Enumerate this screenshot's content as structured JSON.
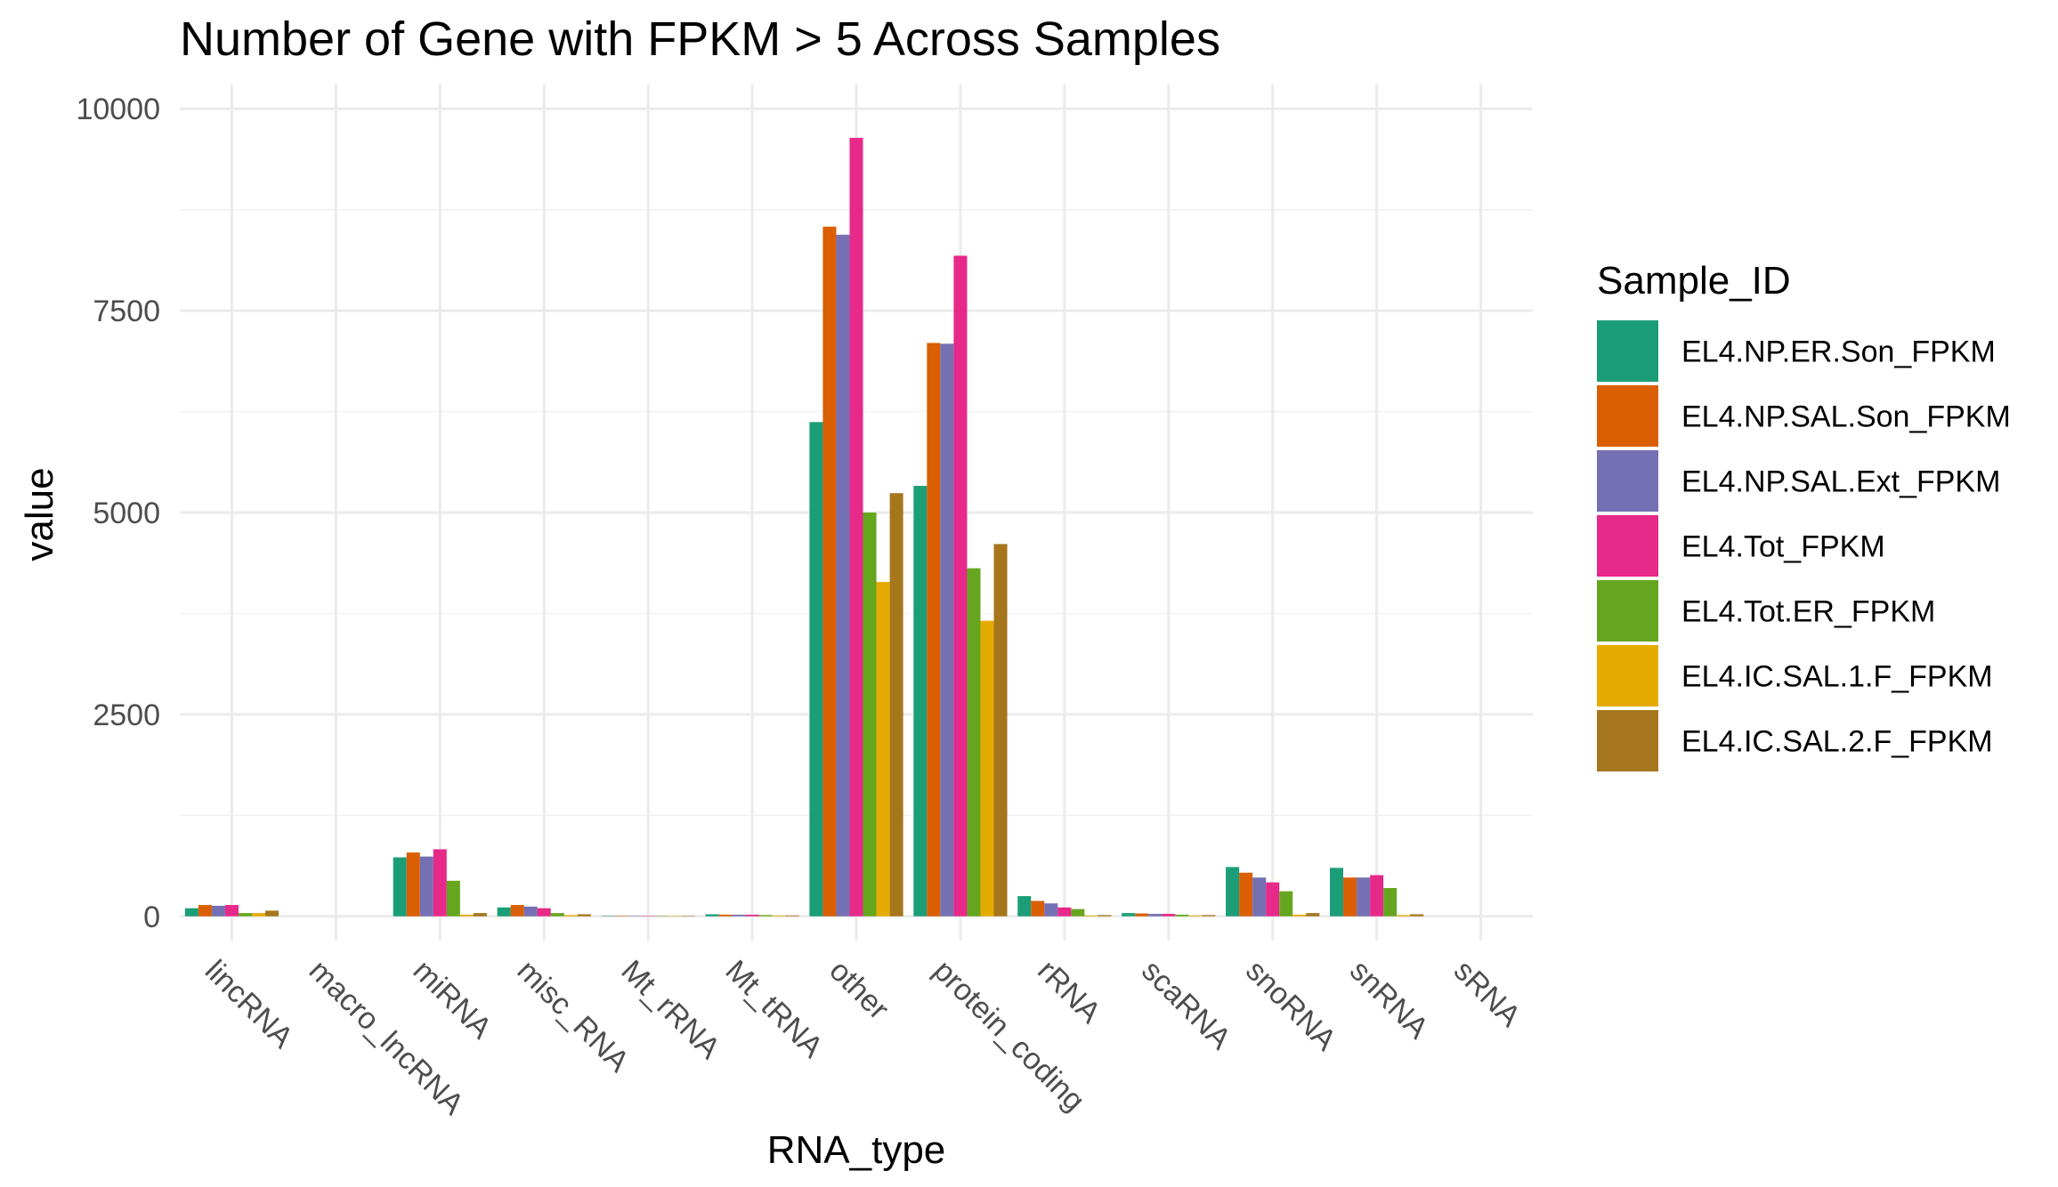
{
  "chart_data": {
    "type": "bar",
    "title": "Number of Gene with FPKM > 5 Across Samples",
    "xlabel": "RNA_type",
    "ylabel": "value",
    "ylim": [
      -300,
      10300
    ],
    "yticks": [
      0,
      2500,
      5000,
      7500,
      10000
    ],
    "ytick_labels": [
      "0",
      "2500",
      "5000",
      "7500",
      "10000"
    ],
    "grid": true,
    "legend_title": "Sample_ID",
    "legend_position": "right",
    "categories": [
      "lincRNA",
      "macro_lncRNA",
      "miRNA",
      "misc_RNA",
      "Mt_rRNA",
      "Mt_tRNA",
      "other",
      "protein_coding",
      "rRNA",
      "scaRNA",
      "snoRNA",
      "snRNA",
      "sRNA"
    ],
    "series": [
      {
        "name": "EL4.NP.ER.Son_FPKM",
        "color": "#1b9e77",
        "values": [
          100,
          0,
          730,
          110,
          5,
          25,
          6120,
          5330,
          250,
          40,
          610,
          600,
          0
        ]
      },
      {
        "name": "EL4.NP.SAL.Son_FPKM",
        "color": "#d95f02",
        "values": [
          140,
          0,
          790,
          140,
          5,
          20,
          8540,
          7100,
          190,
          35,
          540,
          480,
          0
        ]
      },
      {
        "name": "EL4.NP.SAL.Ext_FPKM",
        "color": "#7570b3",
        "values": [
          130,
          0,
          740,
          120,
          5,
          20,
          8440,
          7090,
          160,
          30,
          480,
          480,
          0
        ]
      },
      {
        "name": "EL4.Tot_FPKM",
        "color": "#e7298a",
        "values": [
          140,
          0,
          830,
          100,
          5,
          20,
          9640,
          8180,
          110,
          30,
          420,
          510,
          0
        ]
      },
      {
        "name": "EL4.Tot.ER_FPKM",
        "color": "#66a61e",
        "values": [
          40,
          0,
          440,
          40,
          3,
          15,
          5000,
          4310,
          90,
          20,
          310,
          350,
          0
        ]
      },
      {
        "name": "EL4.IC.SAL.1.F_FPKM",
        "color": "#e6ab02",
        "values": [
          40,
          0,
          20,
          15,
          2,
          10,
          4140,
          3660,
          10,
          10,
          20,
          15,
          0
        ]
      },
      {
        "name": "EL4.IC.SAL.2.F_FPKM",
        "color": "#a6761d",
        "values": [
          70,
          0,
          40,
          25,
          3,
          10,
          5240,
          4610,
          15,
          15,
          40,
          25,
          0
        ]
      }
    ]
  }
}
